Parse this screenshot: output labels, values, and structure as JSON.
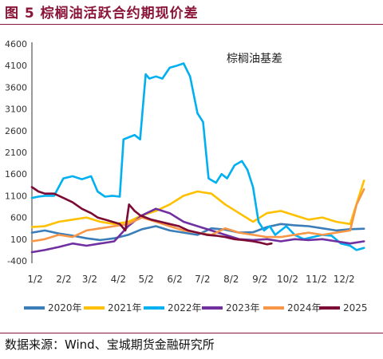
{
  "header": {
    "figure_title": "图 5  棕榈油活跃合约期现价差"
  },
  "footer": {
    "source": "数据来源：Wind、宝城期货金融研究所"
  },
  "colors": {
    "accent": "#8a1538",
    "s2020": "#3a7db8",
    "s2021": "#ffc000",
    "s2022": "#00b0f0",
    "s2023": "#7030a0",
    "s2024": "#f79646",
    "s2025": "#7b0a34"
  },
  "chart_data": {
    "type": "line",
    "title": "棕榈油基差",
    "ylim": [
      -400,
      4600
    ],
    "yticks": [
      -400,
      100,
      600,
      1100,
      1600,
      2100,
      2600,
      3100,
      3600,
      4100,
      4600
    ],
    "xticks": [
      "1/2",
      "2/2",
      "3/2",
      "4/2",
      "5/2",
      "6/2",
      "7/2",
      "8/2",
      "9/2",
      "10/2",
      "11/2",
      "12/2"
    ],
    "x_unit": "day_of_year",
    "xlim": [
      1,
      365
    ],
    "grid": false,
    "legend_position": "bottom",
    "series": [
      {
        "name": "2020年",
        "color": "#3a7db8",
        "x": [
          1,
          15,
          30,
          45,
          60,
          75,
          90,
          105,
          120,
          135,
          150,
          165,
          180,
          195,
          210,
          225,
          240,
          255,
          270,
          285,
          300,
          315,
          330,
          345,
          360
        ],
        "y": [
          250,
          300,
          230,
          180,
          120,
          80,
          120,
          200,
          330,
          400,
          300,
          250,
          200,
          350,
          320,
          250,
          260,
          380,
          450,
          420,
          400,
          350,
          300,
          330,
          340
        ]
      },
      {
        "name": "2021年",
        "color": "#ffc000",
        "x": [
          1,
          15,
          30,
          45,
          60,
          75,
          90,
          105,
          120,
          135,
          150,
          165,
          180,
          195,
          210,
          225,
          240,
          255,
          270,
          285,
          300,
          315,
          330,
          345,
          360
        ],
        "y": [
          380,
          400,
          500,
          550,
          600,
          500,
          450,
          500,
          650,
          750,
          900,
          1100,
          1200,
          1150,
          900,
          700,
          500,
          700,
          750,
          650,
          550,
          600,
          500,
          450,
          1450
        ]
      },
      {
        "name": "2022年",
        "color": "#00b0f0",
        "x": [
          1,
          8,
          15,
          25,
          35,
          45,
          55,
          65,
          72,
          80,
          88,
          96,
          100,
          106,
          112,
          118,
          124,
          128,
          135,
          142,
          150,
          158,
          165,
          172,
          180,
          186,
          192,
          200,
          206,
          212,
          220,
          228,
          234,
          240,
          246,
          252,
          258,
          264,
          270,
          276,
          285,
          295,
          305,
          315,
          325,
          335,
          345,
          352,
          360
        ],
        "y": [
          1050,
          1080,
          1100,
          1100,
          1500,
          1550,
          1480,
          1550,
          1200,
          1080,
          1100,
          1080,
          2400,
          2450,
          2500,
          2400,
          3900,
          3800,
          3850,
          3800,
          4050,
          4100,
          4150,
          3850,
          3000,
          2800,
          1500,
          1400,
          1600,
          1500,
          1800,
          1900,
          1700,
          1300,
          500,
          300,
          400,
          200,
          300,
          400,
          200,
          100,
          150,
          200,
          180,
          0,
          -50,
          -150,
          -100
        ]
      },
      {
        "name": "2023年",
        "color": "#7030a0",
        "x": [
          1,
          15,
          30,
          45,
          60,
          75,
          90,
          105,
          120,
          135,
          150,
          165,
          180,
          195,
          210,
          225,
          240,
          255,
          270,
          285,
          300,
          315,
          330,
          345,
          360
        ],
        "y": [
          -200,
          -150,
          -80,
          0,
          -50,
          0,
          50,
          400,
          650,
          800,
          700,
          500,
          400,
          300,
          200,
          100,
          80,
          100,
          50,
          100,
          80,
          100,
          50,
          0,
          50
        ]
      },
      {
        "name": "2024年",
        "color": "#f79646",
        "x": [
          1,
          15,
          30,
          45,
          60,
          75,
          90,
          105,
          120,
          135,
          150,
          165,
          180,
          195,
          210,
          225,
          240,
          255,
          270,
          285,
          300,
          315,
          330,
          345,
          352,
          360
        ],
        "y": [
          50,
          100,
          200,
          150,
          300,
          350,
          400,
          450,
          600,
          500,
          400,
          300,
          250,
          200,
          350,
          250,
          200,
          150,
          150,
          200,
          250,
          200,
          250,
          300,
          900,
          1250
        ]
      },
      {
        "name": "2025",
        "color": "#7b0a34",
        "x": [
          1,
          8,
          15,
          25,
          35,
          45,
          55,
          65,
          72,
          80,
          88,
          96,
          102,
          106,
          112,
          118,
          124,
          130,
          140,
          150,
          160,
          170,
          180,
          190,
          200,
          210,
          220,
          230,
          240,
          248,
          255,
          260
        ],
        "y": [
          1300,
          1200,
          1150,
          1150,
          1050,
          950,
          800,
          700,
          600,
          550,
          500,
          450,
          300,
          900,
          750,
          650,
          600,
          550,
          500,
          450,
          400,
          300,
          250,
          200,
          180,
          150,
          100,
          80,
          50,
          20,
          -20,
          0
        ]
      }
    ]
  }
}
